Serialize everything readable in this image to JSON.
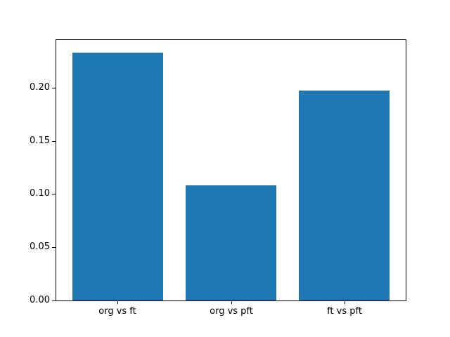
{
  "figure": {
    "background": "#ffffff",
    "frame_color": "#000000",
    "tick_color": "#000000",
    "text_color": "#000000"
  },
  "chart_data": {
    "type": "bar",
    "title": "",
    "xlabel": "",
    "ylabel": "",
    "categories": [
      "org vs ft",
      "org vs pft",
      "ft vs pft"
    ],
    "values": [
      0.233,
      0.108,
      0.197
    ],
    "bar_color": "#1f77b4",
    "bar_width_fraction": 0.8,
    "xlim": [
      -0.54,
      2.54
    ],
    "ylim": [
      0,
      0.2447
    ],
    "yticks": [
      0,
      0.05,
      0.1,
      0.15,
      0.2
    ],
    "ytick_labels": [
      "0.00",
      "0.05",
      "0.10",
      "0.15",
      "0.20"
    ],
    "grid": false,
    "legend": null
  }
}
